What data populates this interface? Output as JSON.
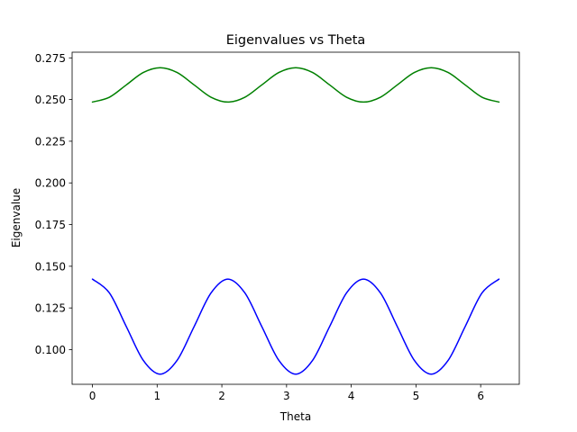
{
  "chart_data": {
    "type": "line",
    "title": "Eigenvalues vs Theta",
    "xlabel": "Theta",
    "ylabel": "Eigenvalue",
    "xlim": [
      -0.314,
      6.597
    ],
    "ylim": [
      0.0792,
      0.2784
    ],
    "xticks": [
      0,
      1,
      2,
      3,
      4,
      5,
      6
    ],
    "xtick_labels": [
      "0",
      "1",
      "2",
      "3",
      "4",
      "5",
      "6"
    ],
    "yticks": [
      0.1,
      0.125,
      0.15,
      0.175,
      0.2,
      0.225,
      0.25,
      0.275
    ],
    "ytick_labels": [
      "0.100",
      "0.125",
      "0.150",
      "0.175",
      "0.200",
      "0.225",
      "0.250",
      "0.275"
    ],
    "grid": false,
    "x": [
      0.0,
      0.262,
      0.524,
      0.785,
      1.047,
      1.309,
      1.571,
      1.833,
      2.094,
      2.356,
      2.618,
      2.88,
      3.142,
      3.403,
      3.665,
      3.927,
      4.189,
      4.451,
      4.712,
      4.974,
      5.236,
      5.498,
      5.76,
      6.021,
      6.283
    ],
    "series": [
      {
        "color": "#008000",
        "values": [
          0.2485,
          0.2514,
          0.2588,
          0.2662,
          0.2691,
          0.2662,
          0.2588,
          0.2514,
          0.2485,
          0.2514,
          0.2588,
          0.2662,
          0.2691,
          0.2662,
          0.2588,
          0.2514,
          0.2485,
          0.2514,
          0.2588,
          0.2662,
          0.2691,
          0.2662,
          0.2588,
          0.2514,
          0.2485
        ]
      },
      {
        "color": "#0000ff",
        "values": [
          0.1423,
          0.134,
          0.1138,
          0.0936,
          0.0853,
          0.0936,
          0.1138,
          0.134,
          0.1423,
          0.134,
          0.1138,
          0.0936,
          0.0853,
          0.0936,
          0.1138,
          0.134,
          0.1423,
          0.134,
          0.1138,
          0.0936,
          0.0853,
          0.0936,
          0.1138,
          0.134,
          0.1423
        ]
      }
    ]
  }
}
